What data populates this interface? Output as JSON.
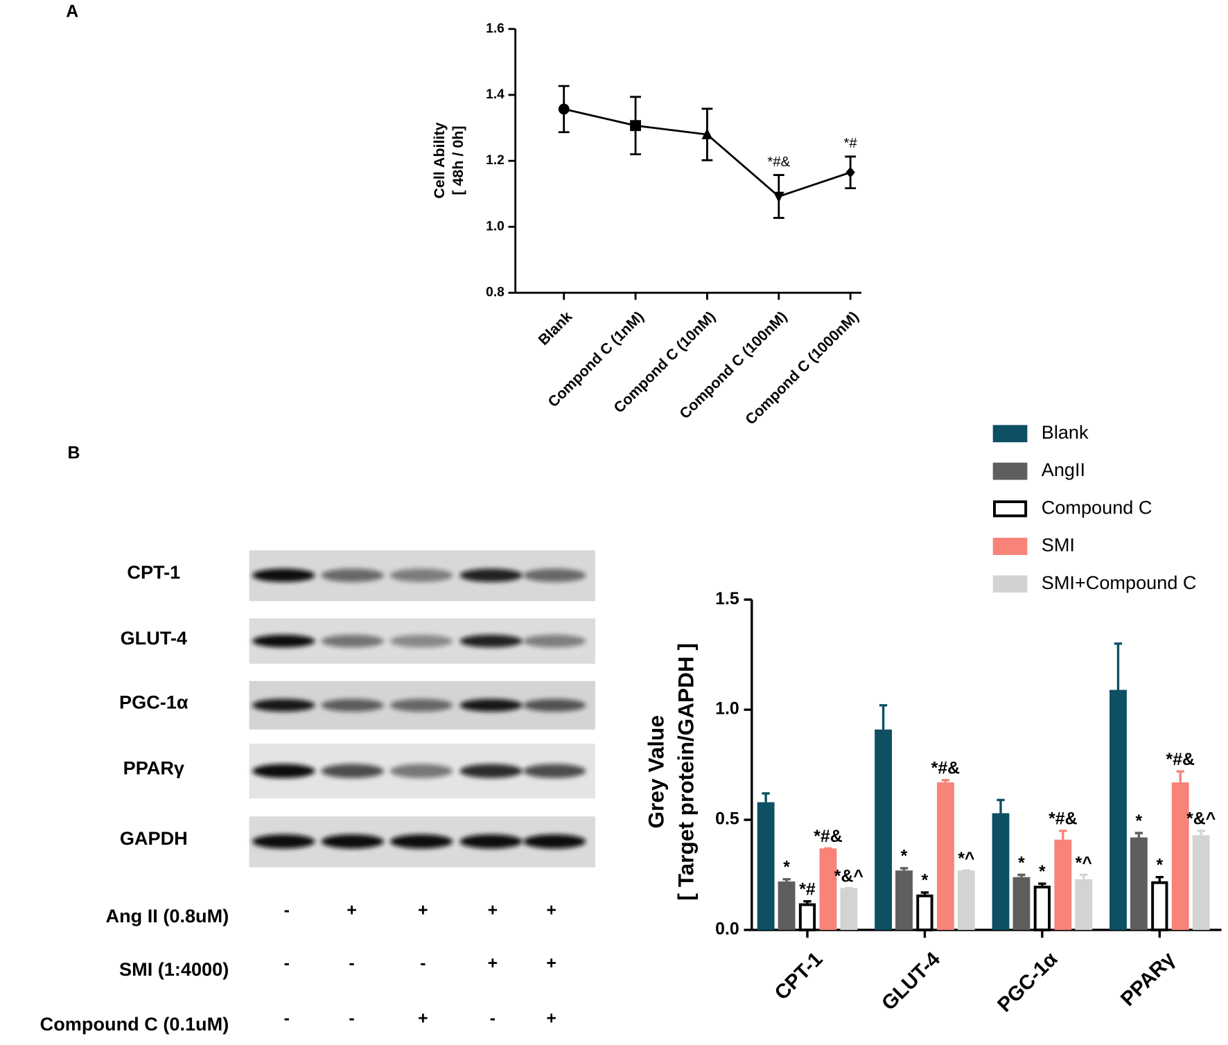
{
  "panel_labels": [
    "A",
    "B"
  ],
  "chart_data": [
    {
      "type": "line",
      "ylabel": [
        "Cell Ability",
        "[ 48h / 0h]"
      ],
      "categories": [
        "Blank",
        "Compond C (1nM)",
        "Compond C (10nM)",
        "Compond C (100nM)",
        "Compond C (1000nM)"
      ],
      "values": [
        1.357,
        1.307,
        1.28,
        1.092,
        1.165
      ],
      "errors": [
        0.07,
        0.087,
        0.078,
        0.065,
        0.048
      ],
      "annotations": [
        null,
        null,
        null,
        "*#&",
        "*#"
      ],
      "markers": [
        "circle",
        "square",
        "triangle",
        "triangle-down",
        "diamond"
      ],
      "color": "#000000",
      "ylim": [
        0.8,
        1.6
      ],
      "yticks": [
        {
          "value": 0.8,
          "label": "0.8"
        },
        {
          "value": 1.0,
          "label": "1.0"
        },
        {
          "value": 1.2,
          "label": "1.2"
        },
        {
          "value": 1.4,
          "label": "1.4"
        },
        {
          "value": 1.6,
          "label": "1.6"
        }
      ]
    },
    {
      "type": "bar",
      "ylabel": [
        "Grey Value",
        "[ Target protein/GAPDH ]"
      ],
      "categories": [
        "CPT-1",
        "GLUT-4",
        "PGC-1α",
        "PPARγ"
      ],
      "series": [
        {
          "name": "Blank",
          "color": "#0d4f63",
          "values": [
            0.58,
            0.91,
            0.53,
            1.09
          ],
          "errors": [
            0.04,
            0.11,
            0.06,
            0.21
          ],
          "annotations": [
            null,
            null,
            null,
            null
          ]
        },
        {
          "name": "AngII",
          "color": "#5e5e5e",
          "values": [
            0.22,
            0.27,
            0.24,
            0.42
          ],
          "errors": [
            0.01,
            0.01,
            0.01,
            0.02
          ],
          "annotations": [
            "*",
            "*",
            "*",
            "*"
          ]
        },
        {
          "name": "Compound C",
          "color": "#ffffff",
          "edgecolor": "#000000",
          "values": [
            0.12,
            0.16,
            0.2,
            0.22
          ],
          "errors": [
            0.01,
            0.01,
            0.01,
            0.02
          ],
          "annotations": [
            "*#",
            "*",
            "*",
            "*"
          ]
        },
        {
          "name": "SMI",
          "color": "#f88379",
          "values": [
            0.37,
            0.67,
            0.41,
            0.67
          ],
          "errors": [
            0.0,
            0.01,
            0.04,
            0.05
          ],
          "annotations": [
            "*#&",
            "*#&",
            "*#&",
            "*#&"
          ]
        },
        {
          "name": "SMI+Compound C",
          "color": "#d3d3d3",
          "values": [
            0.19,
            0.27,
            0.23,
            0.43
          ],
          "errors": [
            0.0,
            0.0,
            0.02,
            0.02
          ],
          "annotations": [
            "*&^",
            "*^",
            "*^",
            "*&^"
          ]
        }
      ],
      "ylim": [
        0,
        1.5
      ],
      "yticks": [
        {
          "value": 0,
          "label": "0.0"
        },
        0.5,
        {
          "value": 1.0,
          "label": "1.0"
        },
        1.5
      ],
      "legend": "top-right"
    }
  ],
  "blot": {
    "proteins": [
      "CPT-1",
      "GLUT-4",
      "PGC-1α",
      "PPARγ",
      "GAPDH"
    ],
    "treatments": [
      {
        "label": "Ang II (0.8uM)",
        "marks": [
          "-",
          "+",
          "+",
          "+",
          "+"
        ]
      },
      {
        "label": "SMI (1:4000)",
        "marks": [
          "-",
          "-",
          "-",
          "+",
          "+"
        ]
      },
      {
        "label": "Compound C (0.1uM)",
        "marks": [
          "-",
          "-",
          "+",
          "-",
          "+"
        ]
      }
    ]
  }
}
